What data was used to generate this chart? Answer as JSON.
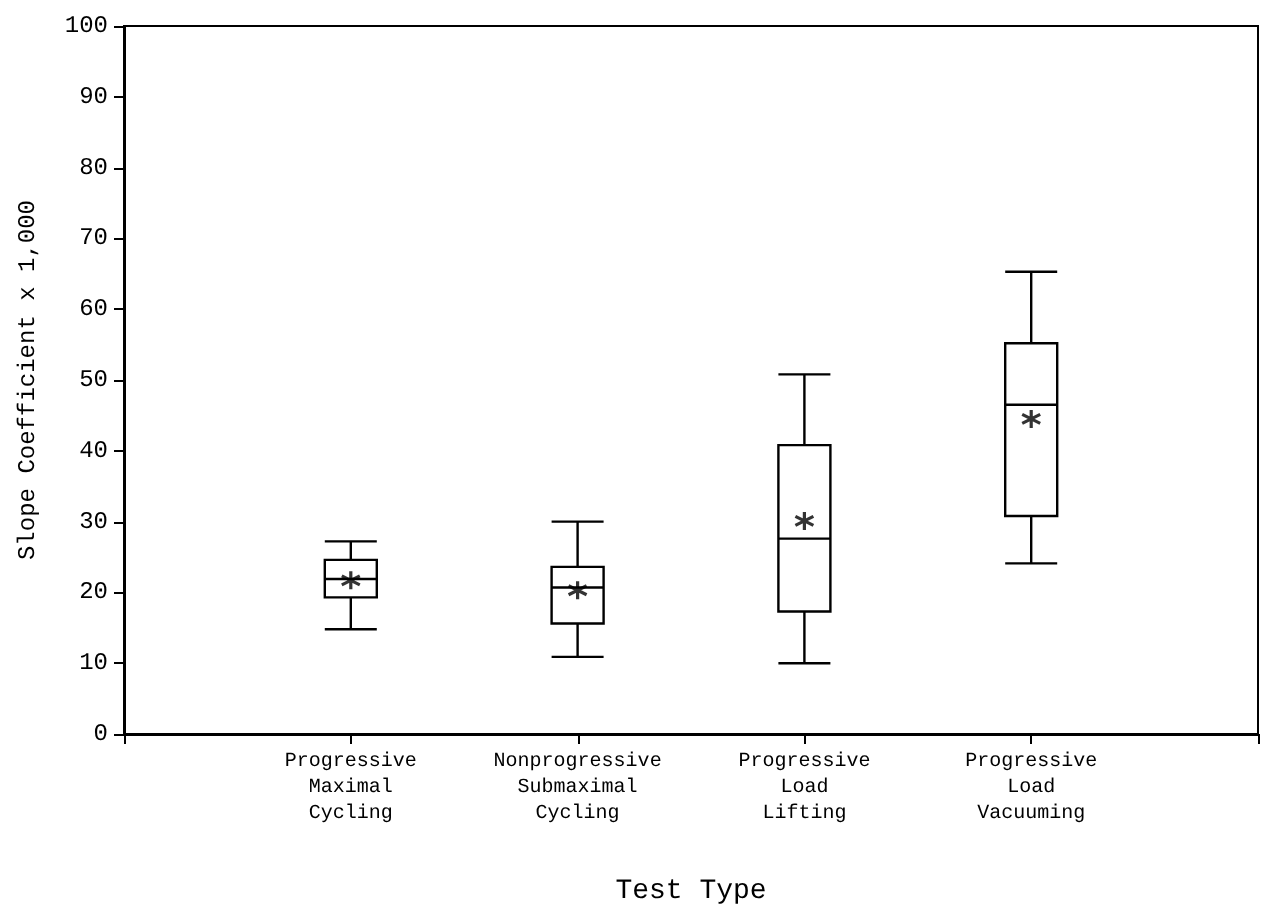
{
  "chart_data": {
    "type": "box",
    "xlabel": "Test Type",
    "ylabel": "Slope Coefficient x 1,000",
    "categories": [
      "Progressive\nMaximal\nCycling",
      "Nonprogressive\nSubmaximal\nCycling",
      "Progressive\nLoad\nLifting",
      "Progressive\nLoad\nVacuuming"
    ],
    "boxes": [
      {
        "low": 14.8,
        "q1": 19.3,
        "median": 21.9,
        "q3": 24.6,
        "high": 27.2,
        "mean": 21.7
      },
      {
        "low": 10.9,
        "q1": 15.6,
        "median": 20.7,
        "q3": 23.6,
        "high": 30,
        "mean": 20.3
      },
      {
        "low": 10,
        "q1": 17.3,
        "median": 27.6,
        "q3": 40.8,
        "high": 50.8,
        "mean": 30.1
      },
      {
        "low": 24.1,
        "q1": 30.8,
        "median": 46.5,
        "q3": 55.2,
        "high": 65.3,
        "mean": 44.5
      }
    ],
    "color": "#000000",
    "ylim": [
      0,
      100
    ],
    "yticks": [
      0,
      10,
      20,
      30,
      40,
      50,
      60,
      70,
      80,
      90,
      100
    ],
    "grid": false
  }
}
